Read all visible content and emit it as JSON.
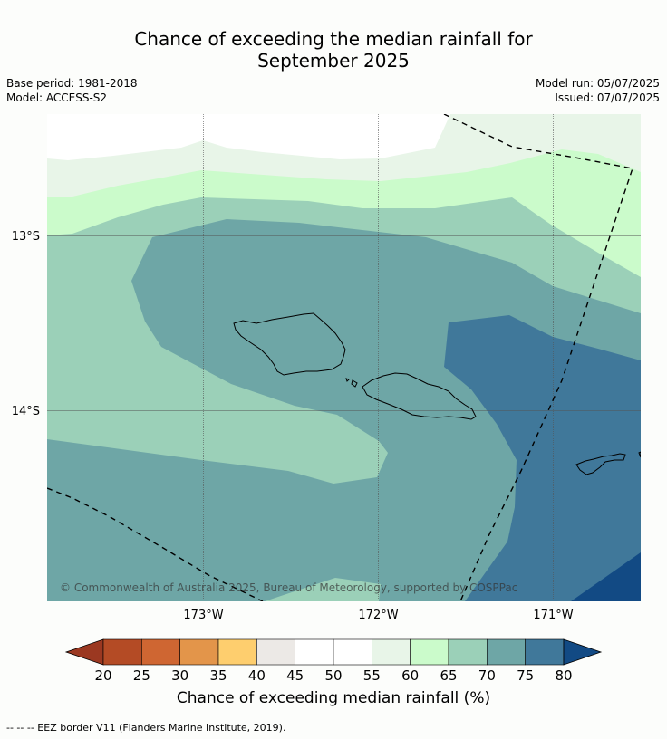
{
  "title_line1": "Chance of exceeding the median rainfall for",
  "title_line2": "September 2025",
  "base_period": "Base period: 1981-2018",
  "model": "Model: ACCESS-S2",
  "model_run": "Model run: 05/07/2025",
  "issued": "Issued: 07/07/2025",
  "lat_labels": [
    "13°S",
    "14°S"
  ],
  "lon_labels": [
    "173°W",
    "172°W",
    "171°W"
  ],
  "copyright": "© Commonwealth of Australia 2025, Bureau of Meteorology, supported by COSPPac",
  "colorbar": {
    "ticks": [
      "20",
      "25",
      "30",
      "35",
      "40",
      "45",
      "50",
      "55",
      "60",
      "65",
      "70",
      "75",
      "80"
    ],
    "colors": [
      "#b44b25",
      "#cf6632",
      "#e3954a",
      "#fece6e",
      "#ece9e6",
      "#ffffff",
      "#ffffff",
      "#e8f5e8",
      "#cbfbcb",
      "#9bd0b8",
      "#6ea6a6",
      "#40789a"
    ],
    "under_color": "#9b3821",
    "over_color": "#124a84",
    "label": "Chance of exceeding median rainfall (%)"
  },
  "footnote": "--  --  -- EEZ border V11 (Flanders Marine Institute, 2019)."
}
